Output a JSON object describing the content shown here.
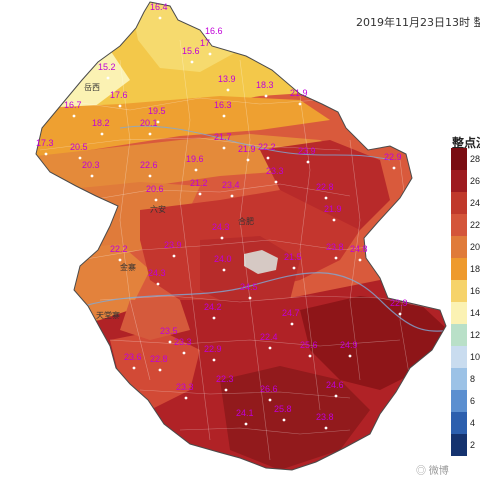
{
  "title": "2019年11月23日13时 整",
  "legend": {
    "title": "整点温",
    "entries": [
      {
        "label": "28",
        "color": "#7a0d12"
      },
      {
        "label": "26",
        "color": "#9e1b1f"
      },
      {
        "label": "24",
        "color": "#c0392b"
      },
      {
        "label": "22",
        "color": "#d4553a"
      },
      {
        "label": "20",
        "color": "#e07b3a"
      },
      {
        "label": "18",
        "color": "#ee9a2e"
      },
      {
        "label": "16",
        "color": "#f6d36a"
      },
      {
        "label": "14",
        "color": "#fbf2b3"
      },
      {
        "label": "12",
        "color": "#b9e0c8"
      },
      {
        "label": "10",
        "color": "#c9dcef"
      },
      {
        "label": "8",
        "color": "#9cc2e6"
      },
      {
        "label": "6",
        "color": "#5b8fd0"
      },
      {
        "label": "4",
        "color": "#2c5fae"
      },
      {
        "label": "2",
        "color": "#15336f"
      }
    ]
  },
  "readings": [
    {
      "value": "16.4"
    },
    {
      "value": "16.6"
    },
    {
      "value": "17"
    },
    {
      "value": "15.6"
    },
    {
      "value": "15.2"
    },
    {
      "value": "13.9"
    },
    {
      "value": "18.3"
    },
    {
      "value": "21.9"
    },
    {
      "value": "16.7"
    },
    {
      "value": "17.6"
    },
    {
      "value": "19.5"
    },
    {
      "value": "16.3"
    },
    {
      "value": "18.2"
    },
    {
      "value": "20.1"
    },
    {
      "value": "17.3"
    },
    {
      "value": "20.5"
    },
    {
      "value": "21.7"
    },
    {
      "value": "19.6"
    },
    {
      "value": "21.9"
    },
    {
      "value": "22.2"
    },
    {
      "value": "22.9"
    },
    {
      "value": "20.3"
    },
    {
      "value": "22.6"
    },
    {
      "value": "23.9"
    },
    {
      "value": "20.6"
    },
    {
      "value": "21.2"
    },
    {
      "value": "23.4"
    },
    {
      "value": "23.3"
    },
    {
      "value": "22.8"
    },
    {
      "value": "21.9"
    },
    {
      "value": "24.3"
    },
    {
      "value": "22.2"
    },
    {
      "value": "23.9"
    },
    {
      "value": "24.8"
    },
    {
      "value": "24.0"
    },
    {
      "value": "21.5"
    },
    {
      "value": "24.3"
    },
    {
      "value": "23.8"
    },
    {
      "value": "24.2"
    },
    {
      "value": "24.5"
    },
    {
      "value": "23.5"
    },
    {
      "value": "24.7"
    },
    {
      "value": "23.3"
    },
    {
      "value": "22.4"
    },
    {
      "value": "22.9"
    },
    {
      "value": "22.8"
    },
    {
      "value": "23.6"
    },
    {
      "value": "22.9"
    },
    {
      "value": "24.9"
    },
    {
      "value": "25.6"
    },
    {
      "value": "26.6"
    },
    {
      "value": "24.6"
    },
    {
      "value": "25.8"
    },
    {
      "value": "22.3"
    },
    {
      "value": "23.3"
    },
    {
      "value": "24.1"
    },
    {
      "value": "23.8"
    }
  ],
  "places": [
    {
      "name": "岳西"
    },
    {
      "name": "天堂寨"
    },
    {
      "name": "金寨"
    },
    {
      "name": "六安"
    },
    {
      "name": "合肥"
    }
  ]
}
